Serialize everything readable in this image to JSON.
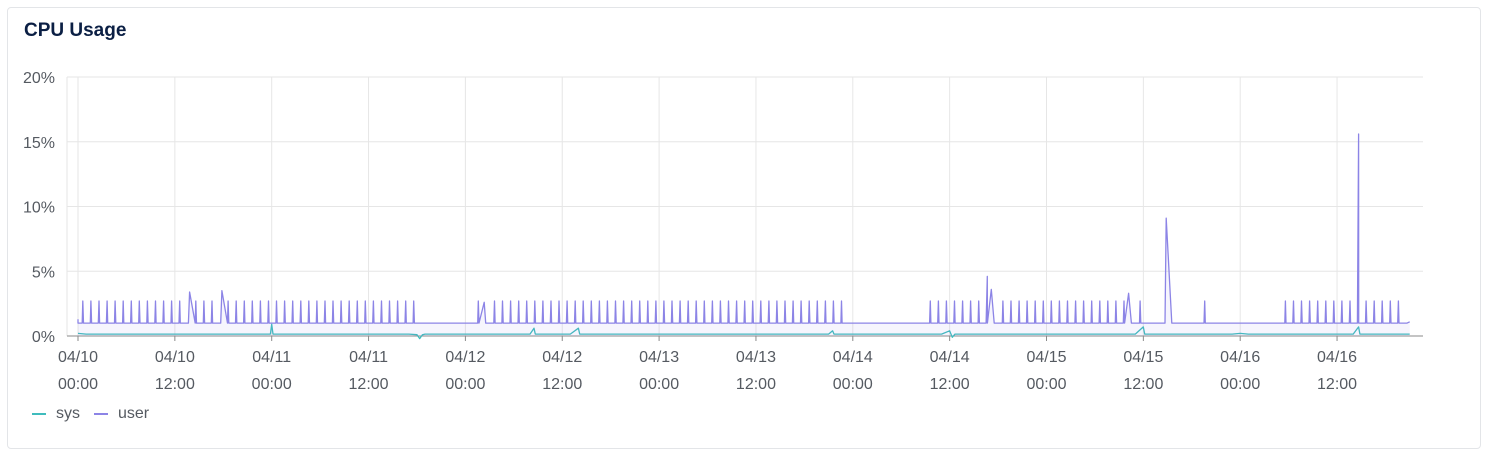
{
  "panel": {
    "title": "CPU Usage"
  },
  "chart_data": {
    "type": "line",
    "title": "CPU Usage",
    "xlabel": "",
    "ylabel": "",
    "y_unit": "%",
    "ylim": [
      0,
      20
    ],
    "y_ticks": [
      "0%",
      "5%",
      "10%",
      "15%",
      "20%"
    ],
    "x_range": [
      "2024-04-10 00:00",
      "2024-04-16 21:00"
    ],
    "x_ticks": [
      {
        "date": "04/10",
        "time": "00:00"
      },
      {
        "date": "04/10",
        "time": "12:00"
      },
      {
        "date": "04/11",
        "time": "00:00"
      },
      {
        "date": "04/11",
        "time": "12:00"
      },
      {
        "date": "04/12",
        "time": "00:00"
      },
      {
        "date": "04/12",
        "time": "12:00"
      },
      {
        "date": "04/13",
        "time": "00:00"
      },
      {
        "date": "04/13",
        "time": "12:00"
      },
      {
        "date": "04/14",
        "time": "00:00"
      },
      {
        "date": "04/14",
        "time": "12:00"
      },
      {
        "date": "04/15",
        "time": "00:00"
      },
      {
        "date": "04/15",
        "time": "12:00"
      },
      {
        "date": "04/16",
        "time": "00:00"
      },
      {
        "date": "04/16",
        "time": "12:00"
      }
    ],
    "grid": true,
    "legend_position": "bottom-left",
    "series": [
      {
        "name": "sys",
        "color": "#3fbcbd",
        "baseline": 0.15,
        "points": [
          [
            "04/10 00:00",
            0.2
          ],
          [
            "04/10 23:50",
            0.15
          ],
          [
            "04/11 00:00",
            0.9
          ],
          [
            "04/11 00:10",
            0.15
          ],
          [
            "04/11 18:00",
            0.1
          ],
          [
            "04/11 18:20",
            -0.2
          ],
          [
            "04/11 18:40",
            0.1
          ],
          [
            "04/12 08:30",
            0.6
          ],
          [
            "04/12 08:40",
            0.15
          ],
          [
            "04/12 14:00",
            0.6
          ],
          [
            "04/12 14:10",
            0.15
          ],
          [
            "04/13 21:30",
            0.4
          ],
          [
            "04/13 21:40",
            0.15
          ],
          [
            "04/14 12:00",
            0.4
          ],
          [
            "04/14 12:20",
            -0.1
          ],
          [
            "04/14 12:40",
            0.15
          ],
          [
            "04/15 12:00",
            0.7
          ],
          [
            "04/15 12:10",
            0.15
          ],
          [
            "04/16 00:00",
            0.2
          ],
          [
            "04/16 14:40",
            0.7
          ],
          [
            "04/16 14:50",
            0.15
          ],
          [
            "04/16 21:00",
            0.15
          ]
        ]
      },
      {
        "name": "user",
        "color": "#8c84e6",
        "baseline": 1.0,
        "spike_period_minutes": 60,
        "spike_value": 2.7,
        "quiet_windows": [
          [
            "04/11 18:00",
            "04/12 00:50"
          ],
          [
            "04/13 23:30",
            "04/14 09:30"
          ],
          [
            "04/15 12:30",
            "04/15 19:30"
          ],
          [
            "04/15 20:00",
            "04/16 05:00"
          ]
        ],
        "points": [
          [
            "04/10 00:00",
            1.3
          ],
          [
            "04/10 13:50",
            3.4
          ],
          [
            "04/10 17:50",
            3.5
          ],
          [
            "04/12 02:20",
            2.6
          ],
          [
            "04/14 16:40",
            4.6
          ],
          [
            "04/14 17:10",
            3.6
          ],
          [
            "04/15 10:10",
            3.3
          ],
          [
            "04/15 14:50",
            9.1
          ],
          [
            "04/16 14:40",
            15.6
          ],
          [
            "04/16 21:00",
            1.1
          ]
        ]
      }
    ]
  }
}
